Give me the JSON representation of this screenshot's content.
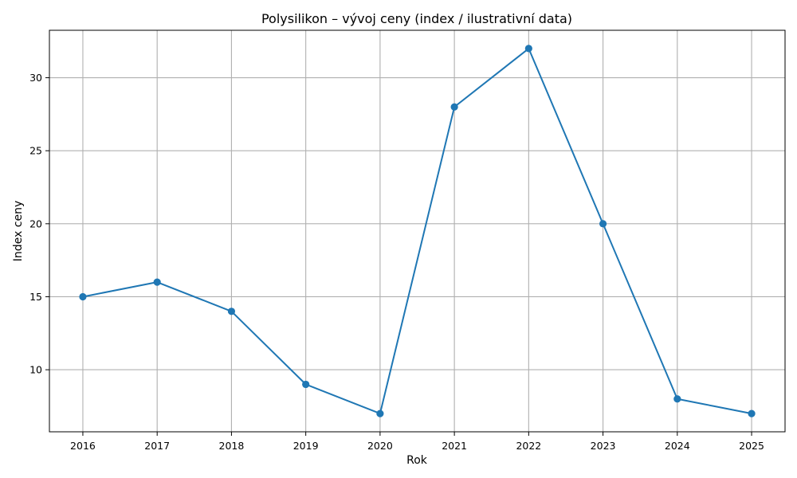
{
  "chart_data": {
    "type": "line",
    "title": "Polysilikon – vývoj ceny (index / ilustrativní data)",
    "xlabel": "Rok",
    "ylabel": "Index ceny",
    "x": [
      2016,
      2017,
      2018,
      2019,
      2020,
      2021,
      2022,
      2023,
      2024,
      2025
    ],
    "series": [
      {
        "values": [
          15,
          16,
          14,
          9,
          7,
          28,
          32,
          20,
          8,
          7
        ],
        "color": "#1f77b4",
        "marker": "circle"
      }
    ],
    "xticks": [
      "2016",
      "2017",
      "2018",
      "2019",
      "2020",
      "2021",
      "2022",
      "2023",
      "2024",
      "2025"
    ],
    "yticks": [
      10,
      15,
      20,
      25,
      30
    ],
    "xlim": [
      2015.55,
      2025.45
    ],
    "ylim": [
      5.75,
      33.25
    ],
    "grid": true,
    "legend": false
  }
}
